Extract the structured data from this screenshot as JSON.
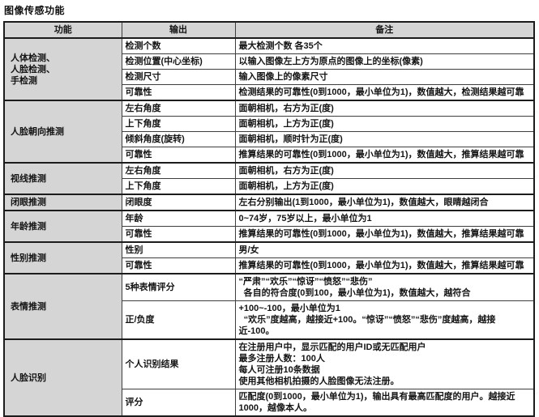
{
  "title": "图像传感功能",
  "table": {
    "headers": [
      "功能",
      "输出",
      "备注"
    ],
    "groups": [
      {
        "function": "人体检测、\n人脸检测、\n手检测",
        "rows": [
          {
            "output": "检测个数",
            "note": "最大检测个数 各35个"
          },
          {
            "output": "检测位置(中心坐标)",
            "note": "以输入图像左上方为原点的图像上的坐标(像素)"
          },
          {
            "output": "检测尺寸",
            "note": "输入图像上的像素尺寸"
          },
          {
            "output": "可靠性",
            "note": "检测结果的可靠性(0到1000，最小单位为1)，数值越大，检测结果越可靠"
          }
        ]
      },
      {
        "function": "人脸朝向推测",
        "rows": [
          {
            "output": "左右角度",
            "note": "面朝相机，右方为正(度)"
          },
          {
            "output": "上下角度",
            "note": "面朝相机，上方为正(度)"
          },
          {
            "output": "倾斜角度(旋转)",
            "note": "面朝相机，顺时针为正(度)"
          },
          {
            "output": "可靠性",
            "note": "推算结果的可靠性(0到1000，最小单位为1)，数值越大，推算结果越可靠"
          }
        ]
      },
      {
        "function": "视线推测",
        "rows": [
          {
            "output": "左右角度",
            "note": "面朝相机，右方为正(度)"
          },
          {
            "output": "上下角度",
            "note": "面朝相机，上方为正(度)"
          }
        ]
      },
      {
        "function": "闭眼推测",
        "rows": [
          {
            "output": "闭眼度",
            "note": "左右分别输出(1到1000，最小单位为1)，数值越大，眼睛越闭合"
          }
        ]
      },
      {
        "function": "年龄推测",
        "rows": [
          {
            "output": "年龄",
            "note": "0~74岁，75岁以上，最小单位为1"
          },
          {
            "output": "可靠性",
            "note": "推算结果的可靠性(0到1000，最小单位为1)，数值越大，推算结果越可靠"
          }
        ]
      },
      {
        "function": "性别推测",
        "rows": [
          {
            "output": "性别",
            "note": "男/女"
          },
          {
            "output": "可靠性",
            "note": "推算结果的可靠性(0到1000，最小单位为1)，数值越大，推算结果越可靠"
          }
        ]
      },
      {
        "function": "表情推测",
        "rows": [
          {
            "output": "5种表情评分",
            "note": "“严肃”“欢乐”“惊讶”“愤怒”“悲伤”\n  各自的符合度(0到100，最小单位为1)，数值越大，越符合"
          },
          {
            "output": "正/负度",
            "note": "+100~-100，最小单位为1\n  “欢乐”度越高，越接近+100。“惊讶”“愤怒”“悲伤”度越高，越接近-100。"
          }
        ]
      },
      {
        "function": "人脸识别",
        "rows": [
          {
            "output": "个人识别结果",
            "note": "在注册用户中，显示匹配的用户ID或无匹配用户\n最多注册人数：100人\n每人可注册10条数据\n使用其他相机拍摄的人脸图像无法注册。"
          },
          {
            "output": "评分",
            "note": "匹配度(0到1000，最小单位为1)，输出具有最高匹配度的用户。越接近1000，越像本人。"
          }
        ]
      }
    ]
  }
}
